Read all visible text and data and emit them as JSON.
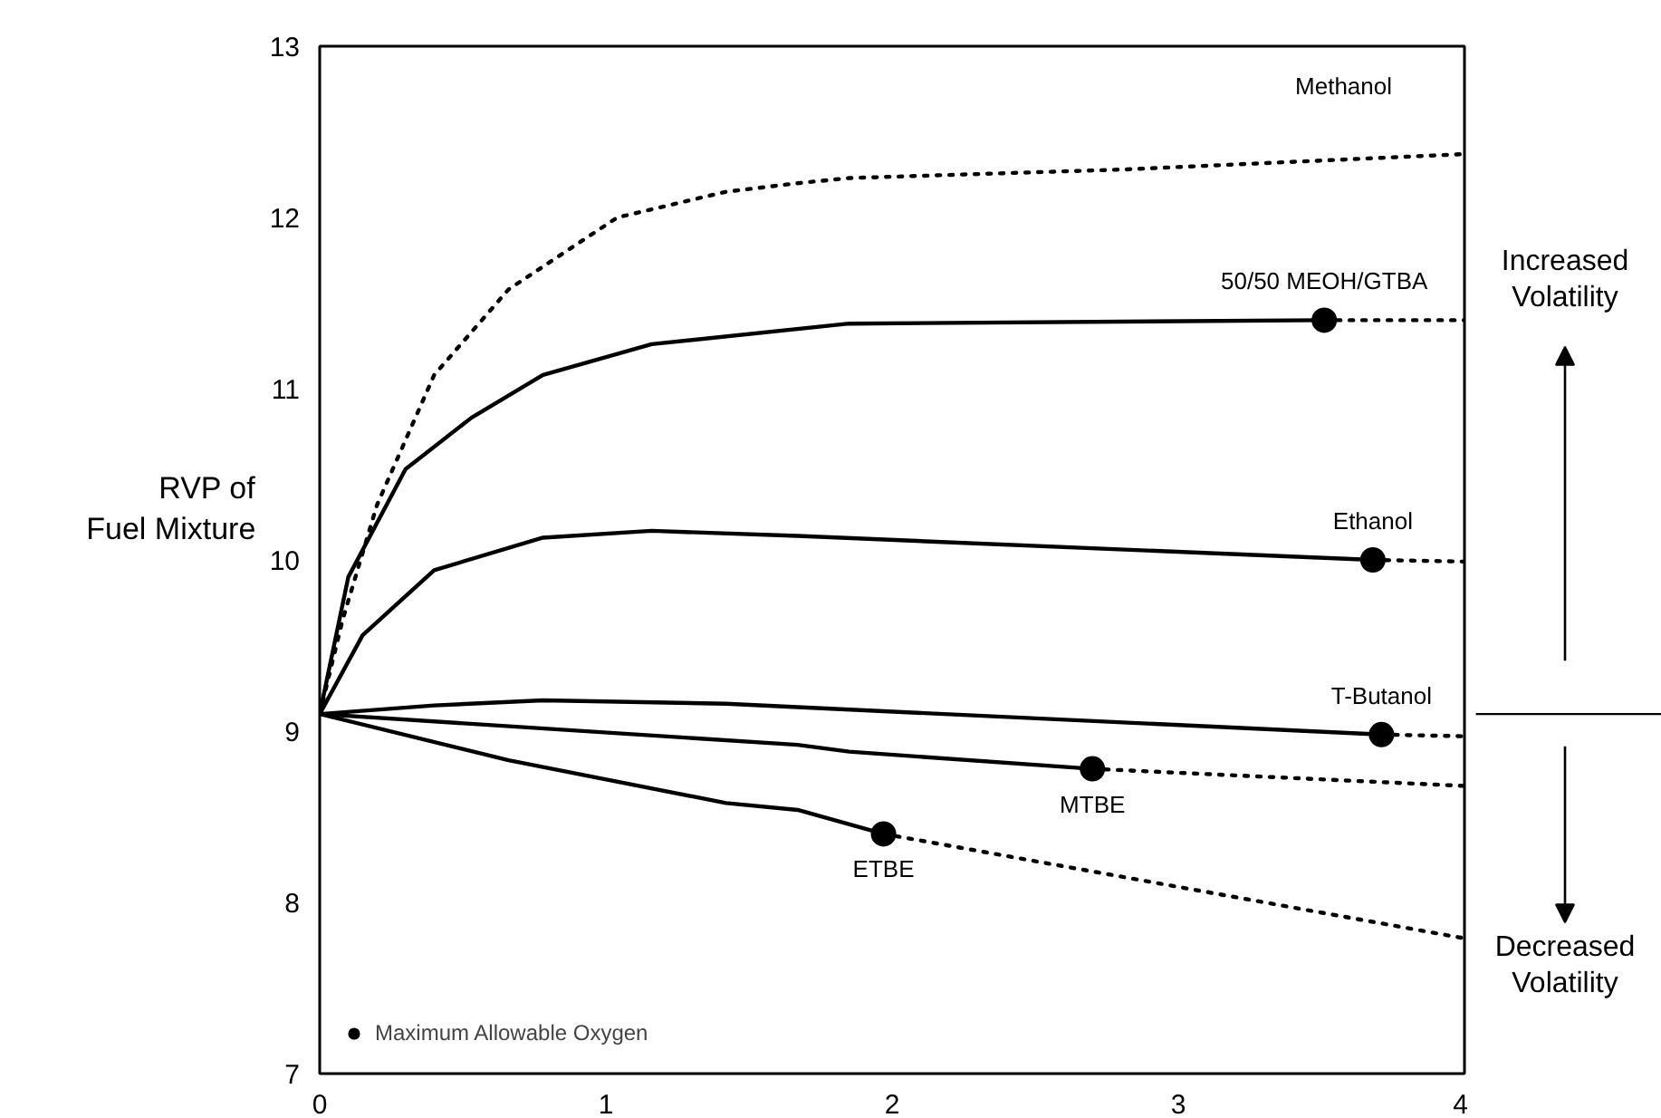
{
  "chart_data": {
    "type": "line",
    "ylabel": "RVP of\nFuel Mixture",
    "xlim": [
      0,
      4
    ],
    "ylim": [
      7,
      13
    ],
    "xticks": [
      0,
      1,
      2,
      3,
      4
    ],
    "yticks": [
      7,
      8,
      9,
      10,
      11,
      12,
      13
    ],
    "grid": false,
    "legend": "bottom left",
    "series": [
      {
        "name": "Methanol",
        "line_style": "dotted",
        "color": "#000000",
        "x": [
          0,
          0.08,
          0.2,
          0.4,
          0.66,
          1.04,
          1.42,
          1.67,
          1.85,
          2.81,
          4
        ],
        "values": [
          9.1,
          9.65,
          10.32,
          11.08,
          11.58,
          12.0,
          12.15,
          12.2,
          12.23,
          12.28,
          12.37
        ]
      },
      {
        "name": "50/50 MEOH/GTBA",
        "line_style": "solid",
        "color": "#000000",
        "x": [
          0,
          0.1,
          0.3,
          0.53,
          0.78,
          1.16,
          1.85,
          3.51
        ],
        "values": [
          9.1,
          9.9,
          10.53,
          10.83,
          11.08,
          11.26,
          11.38,
          11.4
        ]
      },
      {
        "line_style": "dotted",
        "color": "#000000",
        "x": [
          3.51,
          4
        ],
        "values": [
          11.4,
          11.4
        ]
      },
      {
        "name": "Ethanol",
        "line_style": "solid",
        "color": "#000000",
        "x": [
          0,
          0.15,
          0.4,
          0.78,
          1.16,
          1.67,
          3.68
        ],
        "values": [
          9.1,
          9.56,
          9.94,
          10.13,
          10.17,
          10.14,
          10.0
        ]
      },
      {
        "line_style": "dotted",
        "color": "#000000",
        "x": [
          3.68,
          4
        ],
        "values": [
          10.0,
          9.99
        ]
      },
      {
        "name": "T-Butanol",
        "line_style": "solid",
        "color": "#000000",
        "x": [
          0,
          0.4,
          0.78,
          1.42,
          1.67,
          3.71
        ],
        "values": [
          9.1,
          9.15,
          9.18,
          9.16,
          9.14,
          8.98
        ]
      },
      {
        "line_style": "dotted",
        "color": "#000000",
        "x": [
          3.71,
          4
        ],
        "values": [
          8.98,
          8.97
        ]
      },
      {
        "name": "MTBE",
        "line_style": "solid",
        "color": "#000000",
        "x": [
          0,
          1.67,
          1.85,
          2.7
        ],
        "values": [
          9.1,
          8.92,
          8.88,
          8.78
        ]
      },
      {
        "line_style": "dotted",
        "color": "#000000",
        "x": [
          2.7,
          4
        ],
        "values": [
          8.78,
          8.68
        ]
      },
      {
        "name": "ETBE",
        "line_style": "solid",
        "color": "#000000",
        "x": [
          0,
          0.66,
          1.42,
          1.67,
          1.97
        ],
        "values": [
          9.1,
          8.83,
          8.58,
          8.54,
          8.4
        ]
      },
      {
        "line_style": "dotted",
        "color": "#000000",
        "x": [
          1.97,
          4
        ],
        "values": [
          8.4,
          7.79
        ]
      },
      {
        "type": "scatter",
        "name": "Maximum Allowable Oxygen",
        "marker": "circle",
        "color": "#000000",
        "x": [
          3.51,
          3.68,
          3.71,
          2.7,
          1.97
        ],
        "values": [
          11.4,
          10.0,
          8.98,
          8.78,
          8.4
        ]
      }
    ],
    "annotations": [
      "Increased\nVolatility",
      "Decreased\nVolatility"
    ]
  }
}
